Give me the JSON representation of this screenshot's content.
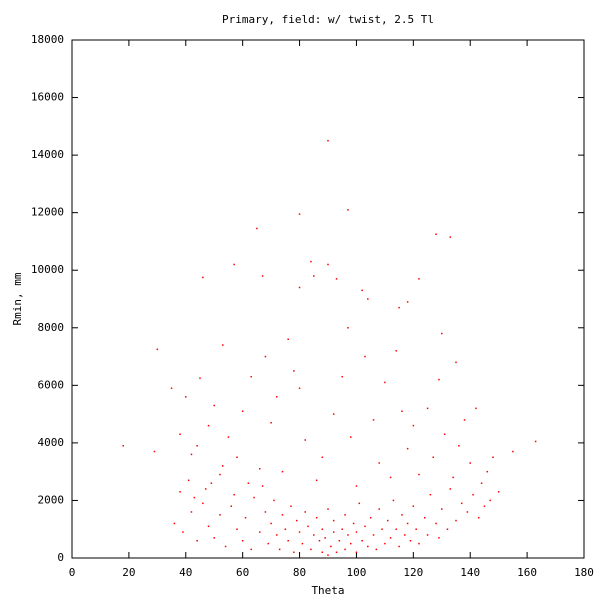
{
  "chart_data": {
    "type": "scatter",
    "title": "Primary, field: w/ twist, 2.5 Tl",
    "x_label": "Theta",
    "y_label": "Rmin, mm",
    "color": "#ff0000",
    "xlim": [
      0,
      180
    ],
    "xticks": [
      0,
      20,
      40,
      60,
      80,
      100,
      120,
      140,
      160,
      180
    ],
    "ylim": [
      0,
      18000
    ],
    "yticks": [
      0,
      2000,
      4000,
      6000,
      8000,
      10000,
      12000,
      14000,
      16000,
      18000
    ],
    "x": [
      18,
      30,
      29,
      35,
      46,
      53,
      57,
      65,
      67,
      68,
      76,
      80,
      80,
      84,
      85,
      90,
      90,
      93,
      97,
      97,
      102,
      104,
      115,
      118,
      122,
      128,
      133,
      130,
      135,
      163,
      155,
      148,
      142,
      40,
      42,
      45,
      48,
      50,
      52,
      55,
      58,
      60,
      62,
      63,
      66,
      70,
      72,
      74,
      78,
      80,
      82,
      86,
      88,
      92,
      95,
      98,
      100,
      103,
      106,
      108,
      110,
      112,
      114,
      116,
      118,
      120,
      122,
      125,
      127,
      129,
      131,
      134,
      136,
      138,
      140,
      144,
      146,
      150,
      38,
      41,
      44,
      47,
      53,
      36,
      39,
      42,
      44,
      46,
      48,
      50,
      52,
      54,
      56,
      58,
      60,
      61,
      63,
      64,
      66,
      68,
      69,
      70,
      71,
      72,
      73,
      74,
      75,
      76,
      77,
      78,
      79,
      80,
      81,
      82,
      83,
      84,
      85,
      86,
      87,
      88,
      88,
      89,
      90,
      90,
      91,
      92,
      92,
      93,
      94,
      95,
      96,
      96,
      97,
      98,
      99,
      100,
      100,
      101,
      102,
      103,
      104,
      105,
      106,
      107,
      108,
      109,
      110,
      111,
      112,
      113,
      114,
      115,
      116,
      117,
      118,
      119,
      120,
      121,
      122,
      124,
      125,
      126,
      128,
      129,
      130,
      132,
      133,
      135,
      137,
      139,
      141,
      143,
      145,
      147,
      38,
      43,
      49,
      57,
      67
    ],
    "values": [
      3900,
      7250,
      3700,
      5900,
      9750,
      7400,
      10200,
      11450,
      9800,
      7000,
      7600,
      11950,
      9400,
      10300,
      9800,
      14500,
      10200,
      9700,
      8000,
      12100,
      9300,
      9000,
      8700,
      8900,
      9700,
      11250,
      11150,
      7800,
      6800,
      4050,
      3700,
      3500,
      5200,
      5600,
      3600,
      6250,
      4600,
      5300,
      2900,
      4200,
      3500,
      5100,
      2600,
      6300,
      3100,
      4700,
      5600,
      3000,
      6500,
      5900,
      4100,
      2700,
      3500,
      5000,
      6300,
      4200,
      2500,
      7000,
      4800,
      3300,
      6100,
      2800,
      7200,
      5100,
      3800,
      4600,
      2900,
      5200,
      3500,
      6200,
      4300,
      2800,
      3900,
      4800,
      3300,
      2600,
      3000,
      2300,
      4300,
      2700,
      3900,
      2400,
      3200,
      1200,
      900,
      1600,
      600,
      1900,
      1100,
      700,
      1500,
      400,
      1800,
      1000,
      600,
      1400,
      300,
      2100,
      900,
      1600,
      500,
      1200,
      2000,
      800,
      300,
      1500,
      1000,
      600,
      1800,
      200,
      1300,
      900,
      500,
      1600,
      1100,
      300,
      800,
      1400,
      600,
      200,
      1000,
      700,
      100,
      1700,
      400,
      900,
      1300,
      200,
      600,
      1000,
      300,
      1500,
      800,
      500,
      1200,
      200,
      900,
      1900,
      600,
      1100,
      400,
      1400,
      800,
      300,
      1700,
      1000,
      500,
      1300,
      700,
      2000,
      1000,
      400,
      1500,
      800,
      1200,
      600,
      1800,
      1000,
      500,
      1400,
      800,
      2200,
      1200,
      700,
      1700,
      1000,
      2400,
      1300,
      1900,
      1600,
      2200,
      1400,
      1800,
      2000,
      2300,
      2100,
      2600,
      2200,
      2500
    ]
  }
}
